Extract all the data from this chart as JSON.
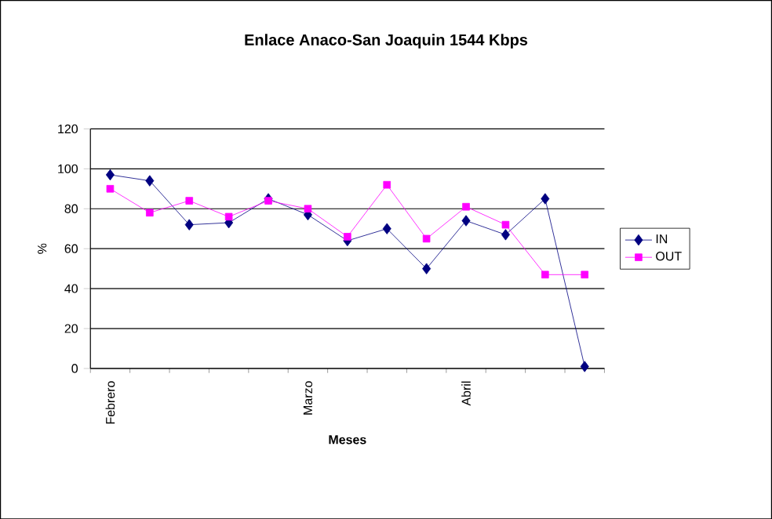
{
  "chart_data": {
    "type": "line",
    "title": "Enlace Anaco-San Joaquin 1544 Kbps",
    "xlabel": "Meses",
    "ylabel": "%",
    "categories": [
      "Febrero",
      null,
      null,
      null,
      null,
      "Marzo",
      null,
      null,
      null,
      "Abril",
      null,
      null,
      null
    ],
    "series": [
      {
        "name": "IN",
        "color": "#000080",
        "marker": "diamond",
        "values": [
          97,
          94,
          72,
          73,
          85,
          77,
          64,
          70,
          50,
          74,
          67,
          85,
          1
        ]
      },
      {
        "name": "OUT",
        "color": "#ff00ff",
        "marker": "square",
        "values": [
          90,
          78,
          84,
          76,
          84,
          80,
          66,
          92,
          65,
          81,
          72,
          47,
          47
        ]
      }
    ],
    "ylim": [
      0,
      120
    ],
    "yticks": [
      0,
      20,
      40,
      60,
      80,
      100,
      120
    ],
    "grid": "y",
    "legend": "right",
    "line_style": "solid"
  }
}
